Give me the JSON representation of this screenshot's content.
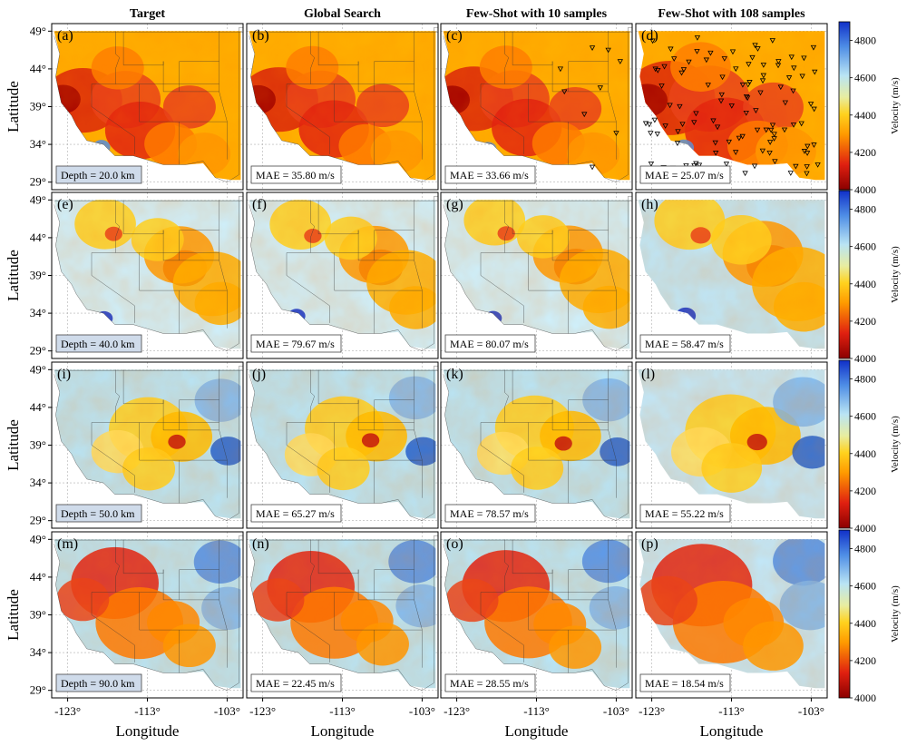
{
  "columns": [
    "Target",
    "Global Search",
    "Few-Shot with 10 samples",
    "Few-Shot with 108 samples"
  ],
  "panel_letters": [
    "(a)",
    "(b)",
    "(c)",
    "(d)",
    "(e)",
    "(f)",
    "(g)",
    "(h)",
    "(i)",
    "(j)",
    "(k)",
    "(l)",
    "(m)",
    "(n)",
    "(o)",
    "(p)"
  ],
  "rows": [
    {
      "depth_label": "Depth = 20.0 km",
      "mae": [
        "MAE = 35.80 m/s",
        "MAE = 33.66 m/s",
        "MAE = 25.07 m/s"
      ]
    },
    {
      "depth_label": "Depth = 40.0 km",
      "mae": [
        "MAE = 79.67 m/s",
        "MAE = 80.07 m/s",
        "MAE = 58.47 m/s"
      ]
    },
    {
      "depth_label": "Depth = 50.0 km",
      "mae": [
        "MAE = 65.27 m/s",
        "MAE = 78.57 m/s",
        "MAE = 55.22 m/s"
      ]
    },
    {
      "depth_label": "Depth = 90.0 km",
      "mae": [
        "MAE = 22.45 m/s",
        "MAE = 28.55 m/s",
        "MAE = 18.54 m/s"
      ]
    }
  ],
  "y_axis_label": "Latitude",
  "x_axis_label": "Longitude",
  "lat_ticks": [
    "49°",
    "44°",
    "39°",
    "34°",
    "29°"
  ],
  "lon_ticks": [
    "-123°",
    "-113°",
    "-103°"
  ],
  "colorbar_label": "Velocity (m/s)",
  "colorbar_ticks": [
    "4800",
    "4600",
    "4400",
    "4200",
    "4000"
  ],
  "colors": {
    "low": "#8b0000",
    "mid_low": "#e8401c",
    "mid": "#ffd21e",
    "mid_high": "#b9e4f4",
    "high": "#1030c8",
    "depth_box": "#cfdbea"
  },
  "chart_data": {
    "type": "heatmap",
    "layout": "4x4 grid of velocity maps of the western United States",
    "depths_km": [
      20.0,
      40.0,
      50.0,
      90.0
    ],
    "mae_m_s": {
      "Global Search": [
        35.8,
        79.67,
        65.27,
        22.45
      ],
      "Few-Shot with 10 samples": [
        33.66,
        80.07,
        78.57,
        28.55
      ],
      "Few-Shot with 108 samples": [
        25.07,
        58.47,
        55.22,
        18.54
      ]
    },
    "xlim": [
      -125,
      -101
    ],
    "ylim": [
      28,
      50
    ],
    "lon_ticks": [
      -123,
      -113,
      -103
    ],
    "lat_ticks": [
      49,
      44,
      39,
      34,
      29
    ],
    "colorbar_range": [
      4000,
      4900
    ],
    "colormap": "red-yellow-blue (RdYlBu)",
    "station_markers": "inverted triangles in Few-Shot panels (c) and (d)",
    "grid": true
  }
}
